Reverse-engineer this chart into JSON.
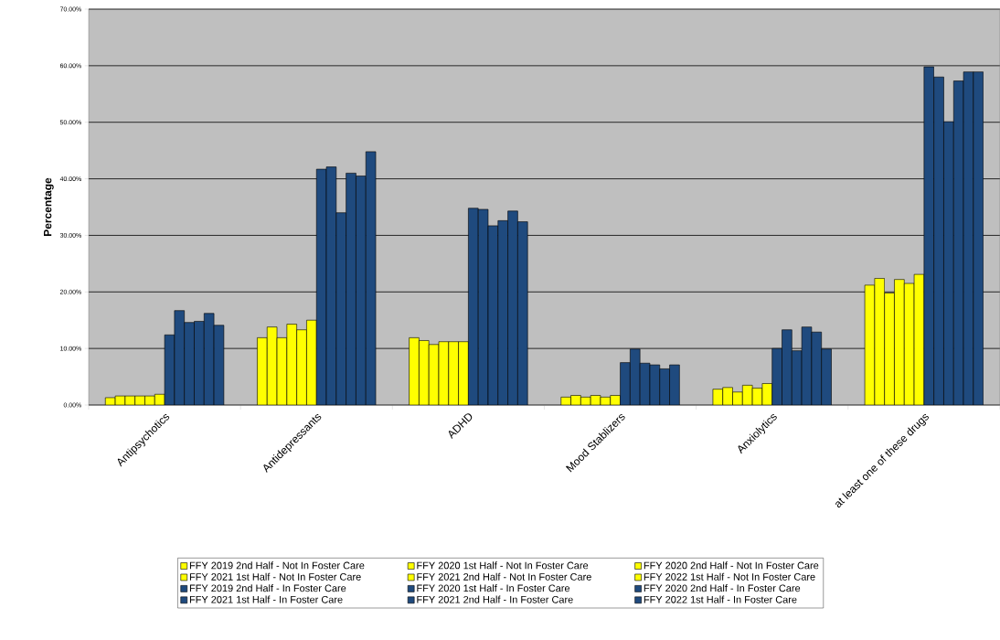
{
  "chart_data": {
    "type": "bar",
    "ylabel": "Percentage",
    "categories": [
      "Antipsychotics",
      "Antidepressants",
      "ADHD",
      "Mood Stablizers",
      "Anxiolytics",
      "at least one of these drugs"
    ],
    "series": [
      {
        "name": "FFY 2019 2nd Half - Not In Foster Care",
        "color": "#ffff00",
        "values": [
          1.3,
          11.9,
          11.9,
          1.4,
          2.8,
          21.2
        ]
      },
      {
        "name": "FFY 2020 1st Half - Not In Foster Care",
        "color": "#ffff00",
        "values": [
          1.6,
          13.8,
          11.4,
          1.7,
          3.1,
          22.4
        ]
      },
      {
        "name": "FFY 2020 2nd Half - Not In Foster Care",
        "color": "#ffff00",
        "values": [
          1.6,
          11.9,
          10.7,
          1.4,
          2.3,
          19.8
        ]
      },
      {
        "name": "FFY 2021 1st Half - Not In Foster Care",
        "color": "#ffff00",
        "values": [
          1.6,
          14.3,
          11.2,
          1.7,
          3.5,
          22.2
        ]
      },
      {
        "name": "FFY 2021 2nd Half - Not In Foster Care",
        "color": "#ffff00",
        "values": [
          1.6,
          13.3,
          11.2,
          1.4,
          3.0,
          21.5
        ]
      },
      {
        "name": "FFY 2022 1st Half - Not In Foster Care",
        "color": "#ffff00",
        "values": [
          1.9,
          15.0,
          11.2,
          1.7,
          3.8,
          23.1
        ]
      },
      {
        "name": "FFY 2019 2nd Half - In Foster Care",
        "color": "#1f4a7e",
        "values": [
          12.4,
          41.7,
          34.8,
          7.5,
          10.0,
          59.8
        ]
      },
      {
        "name": "FFY 2020 1st Half - In Foster Care",
        "color": "#1f4a7e",
        "values": [
          16.7,
          42.1,
          34.6,
          9.9,
          13.3,
          58.0
        ]
      },
      {
        "name": "FFY 2020 2nd Half - In Foster Care",
        "color": "#1f4a7e",
        "values": [
          14.6,
          34.0,
          31.7,
          7.4,
          9.6,
          50.1
        ]
      },
      {
        "name": "FFY 2021 1st Half - In Foster Care",
        "color": "#1f4a7e",
        "values": [
          14.8,
          41.0,
          32.6,
          7.1,
          13.8,
          57.3
        ]
      },
      {
        "name": "FFY 2021 2nd Half - In Foster Care",
        "color": "#1f4a7e",
        "values": [
          16.2,
          40.5,
          34.3,
          6.4,
          12.9,
          58.9
        ]
      },
      {
        "name": "FFY 2022 1st Half - In Foster Care",
        "color": "#1f4a7e",
        "values": [
          14.1,
          44.8,
          32.4,
          7.1,
          9.9,
          58.9
        ]
      }
    ],
    "ylim": [
      0,
      70
    ],
    "yticks": [
      {
        "value": 0,
        "label": "0.00%"
      },
      {
        "value": 10,
        "label": "10.00%"
      },
      {
        "value": 20,
        "label": "20.00%"
      },
      {
        "value": 30,
        "label": "30.00%"
      },
      {
        "value": 40,
        "label": "40.00%"
      },
      {
        "value": 50,
        "label": "50.00%"
      },
      {
        "value": 60,
        "label": "60.00%"
      },
      {
        "value": 70,
        "label": "70.00%"
      }
    ],
    "grid": "y",
    "legend": "bottom"
  }
}
